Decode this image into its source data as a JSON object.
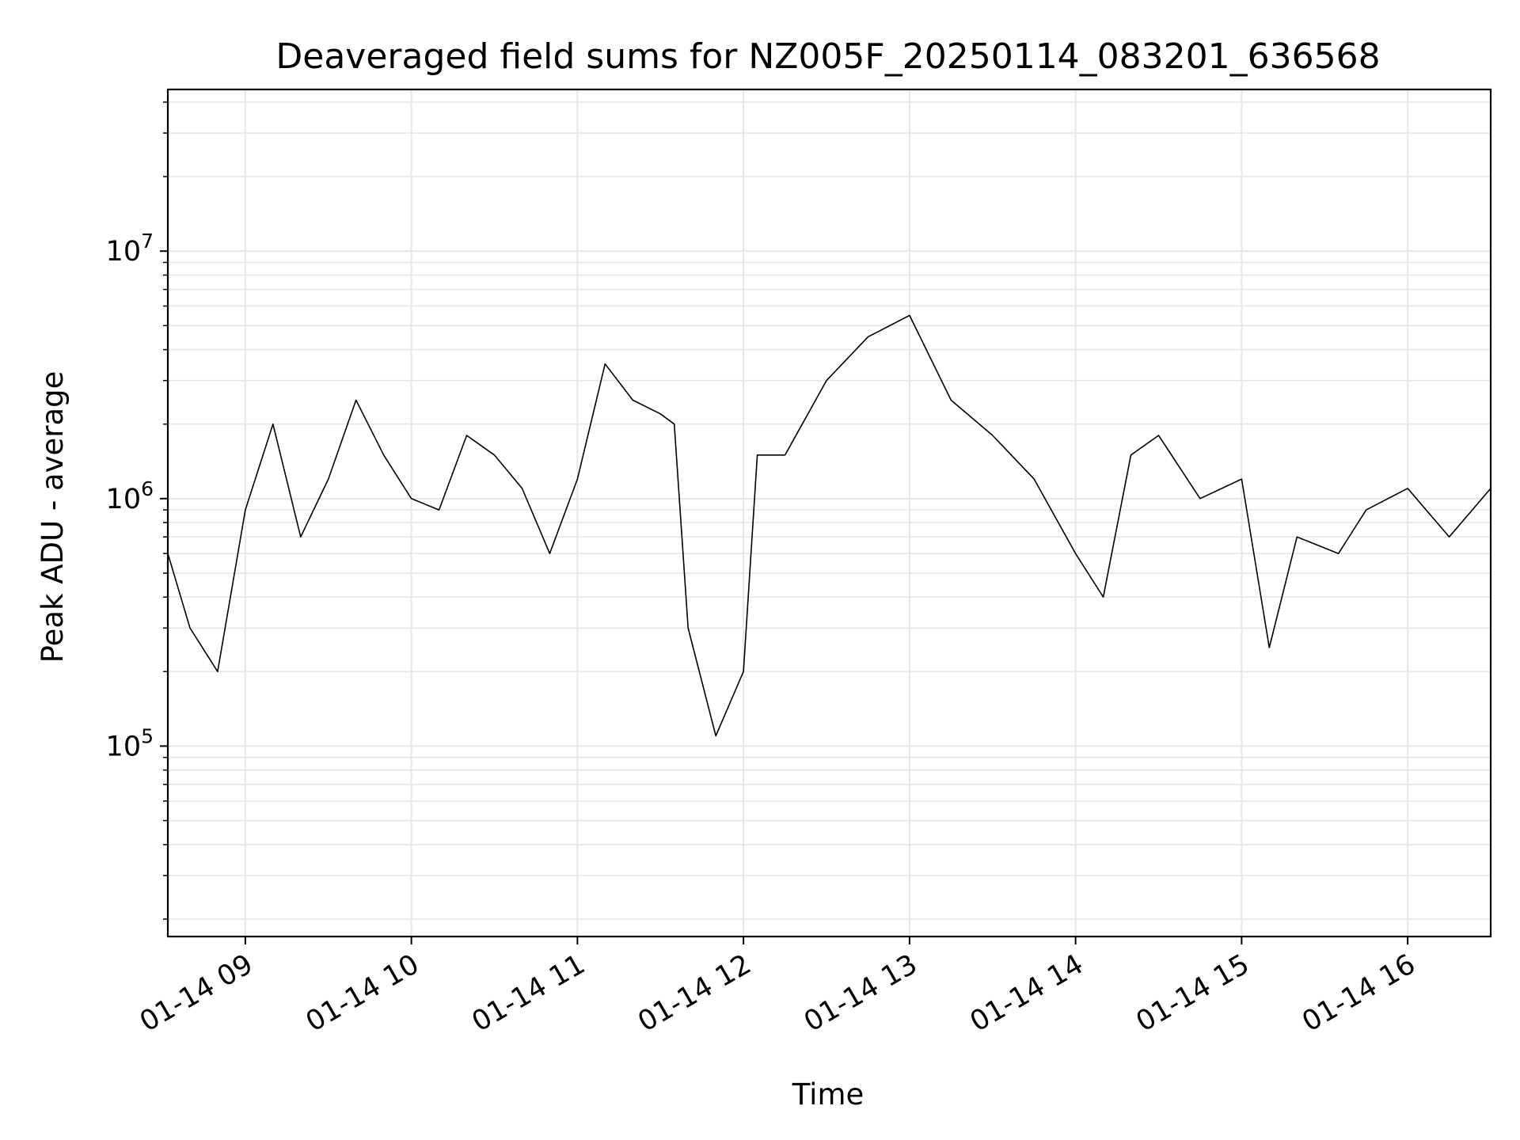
{
  "chart_data": {
    "type": "line",
    "title": "Deaveraged field sums for NZ005F_20250114_083201_636568",
    "xlabel": "Time",
    "ylabel": "Peak ADU - average",
    "yscale": "log",
    "ylim": [
      17000,
      45000000
    ],
    "xlim": [
      "2025-01-14T08:32",
      "2025-01-14T16:30"
    ],
    "grid": true,
    "line_color": "#000000",
    "grid_color": "#e6e6e6",
    "x_ticks": [
      "01-14 09",
      "01-14 10",
      "01-14 11",
      "01-14 12",
      "01-14 13",
      "01-14 14",
      "01-14 15",
      "01-14 16"
    ],
    "y_ticks": [
      {
        "base": "10",
        "exp": "5",
        "value": 100000
      },
      {
        "base": "10",
        "exp": "6",
        "value": 1000000
      },
      {
        "base": "10",
        "exp": "7",
        "value": 10000000
      }
    ],
    "series": [
      {
        "points": [
          [
            "2025-01-14T08:32",
            600000
          ],
          [
            "2025-01-14T08:40",
            300000
          ],
          [
            "2025-01-14T08:50",
            200000
          ],
          [
            "2025-01-14T09:00",
            900000
          ],
          [
            "2025-01-14T09:10",
            2000000
          ],
          [
            "2025-01-14T09:20",
            700000
          ],
          [
            "2025-01-14T09:30",
            1200000
          ],
          [
            "2025-01-14T09:40",
            2500000
          ],
          [
            "2025-01-14T09:50",
            1500000
          ],
          [
            "2025-01-14T10:00",
            1000000
          ],
          [
            "2025-01-14T10:10",
            900000
          ],
          [
            "2025-01-14T10:20",
            1800000
          ],
          [
            "2025-01-14T10:30",
            1500000
          ],
          [
            "2025-01-14T10:40",
            1100000
          ],
          [
            "2025-01-14T10:50",
            600000
          ],
          [
            "2025-01-14T11:00",
            1200000
          ],
          [
            "2025-01-14T11:10",
            3500000
          ],
          [
            "2025-01-14T11:20",
            2500000
          ],
          [
            "2025-01-14T11:30",
            2200000
          ],
          [
            "2025-01-14T11:35",
            2000000
          ],
          [
            "2025-01-14T11:40",
            300000
          ],
          [
            "2025-01-14T11:50",
            110000
          ],
          [
            "2025-01-14T12:00",
            200000
          ],
          [
            "2025-01-14T12:05",
            1500000
          ],
          [
            "2025-01-14T12:15",
            1500000
          ],
          [
            "2025-01-14T12:30",
            3000000
          ],
          [
            "2025-01-14T12:45",
            4500000
          ],
          [
            "2025-01-14T13:00",
            5500000
          ],
          [
            "2025-01-14T13:15",
            2500000
          ],
          [
            "2025-01-14T13:30",
            1800000
          ],
          [
            "2025-01-14T13:45",
            1200000
          ],
          [
            "2025-01-14T14:00",
            600000
          ],
          [
            "2025-01-14T14:10",
            400000
          ],
          [
            "2025-01-14T14:20",
            1500000
          ],
          [
            "2025-01-14T14:30",
            1800000
          ],
          [
            "2025-01-14T14:45",
            1000000
          ],
          [
            "2025-01-14T15:00",
            1200000
          ],
          [
            "2025-01-14T15:10",
            250000
          ],
          [
            "2025-01-14T15:20",
            700000
          ],
          [
            "2025-01-14T15:35",
            600000
          ],
          [
            "2025-01-14T15:45",
            900000
          ],
          [
            "2025-01-14T16:00",
            1100000
          ],
          [
            "2025-01-14T16:15",
            700000
          ],
          [
            "2025-01-14T16:30",
            1100000
          ]
        ]
      }
    ]
  }
}
